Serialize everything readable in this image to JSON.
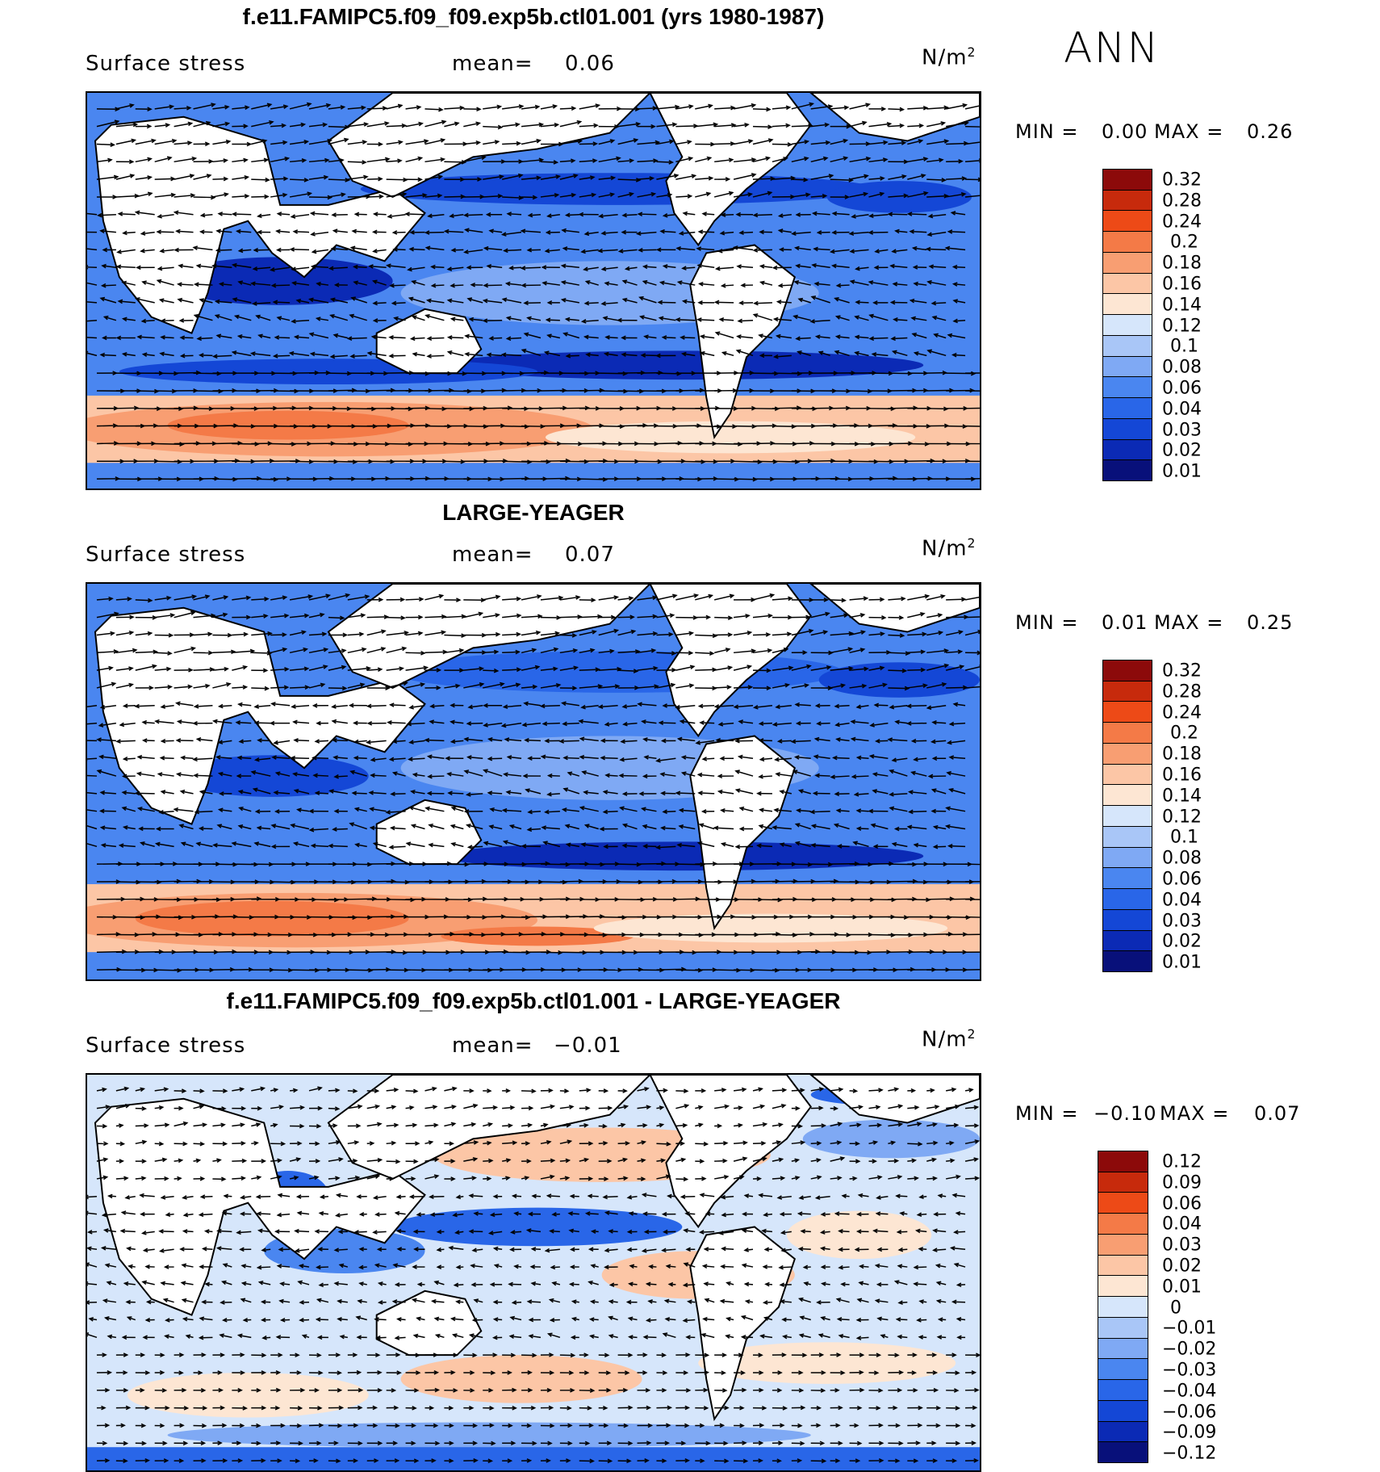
{
  "season": "ANN",
  "units_text": "N/m",
  "units_exp": "2",
  "field_label": "Surface stress",
  "mean_label": "mean=",
  "colors": {
    "abs_scale": [
      "#08107a",
      "#0b2ab5",
      "#1447d6",
      "#2966e8",
      "#4a86f0",
      "#7fa9f4",
      "#a9c6f7",
      "#d6e6fb",
      "#fde6d3",
      "#fcc6a6",
      "#f89e72",
      "#f47a47",
      "#ed4a17",
      "#c72a0c",
      "#8c0a0a"
    ],
    "diff_scale": [
      "#08107a",
      "#0b2ab5",
      "#1447d6",
      "#2966e8",
      "#4a86f0",
      "#7fa9f4",
      "#a9c6f7",
      "#d6e6fb",
      "#fde6d3",
      "#fcc6a6",
      "#f89e72",
      "#f47a47",
      "#ed4a17",
      "#c72a0c",
      "#8c0a0a"
    ]
  },
  "panels": [
    {
      "title": "f.e11.FAMIPC5.f09_f09.exp5b.ctl01.001 (yrs 1980-1987)",
      "mean": "0.06",
      "min_label": "MIN =",
      "min": "0.00",
      "max_label": "MAX =",
      "max": "0.26",
      "colorbar_labels": [
        "0.32",
        "0.28",
        "0.24",
        "0.2",
        "0.18",
        "0.16",
        "0.14",
        "0.12",
        "0.1",
        "0.08",
        "0.06",
        "0.04",
        "0.03",
        "0.02",
        "0.01"
      ]
    },
    {
      "title": "LARGE-YEAGER",
      "mean": "0.07",
      "min_label": "MIN =",
      "min": "0.01",
      "max_label": "MAX =",
      "max": "0.25",
      "colorbar_labels": [
        "0.32",
        "0.28",
        "0.24",
        "0.2",
        "0.18",
        "0.16",
        "0.14",
        "0.12",
        "0.1",
        "0.08",
        "0.06",
        "0.04",
        "0.03",
        "0.02",
        "0.01"
      ]
    },
    {
      "title": "f.e11.FAMIPC5.f09_f09.exp5b.ctl01.001 - LARGE-YEAGER",
      "mean": "−0.01",
      "min_label": "MIN =",
      "min": "−0.10",
      "max_label": "MAX =",
      "max": "0.07",
      "colorbar_labels": [
        "0.12",
        "0.09",
        "0.06",
        "0.04",
        "0.03",
        "0.02",
        "0.01",
        "0",
        "−0.01",
        "−0.02",
        "−0.03",
        "−0.04",
        "−0.06",
        "−0.09",
        "−0.12"
      ]
    }
  ]
}
